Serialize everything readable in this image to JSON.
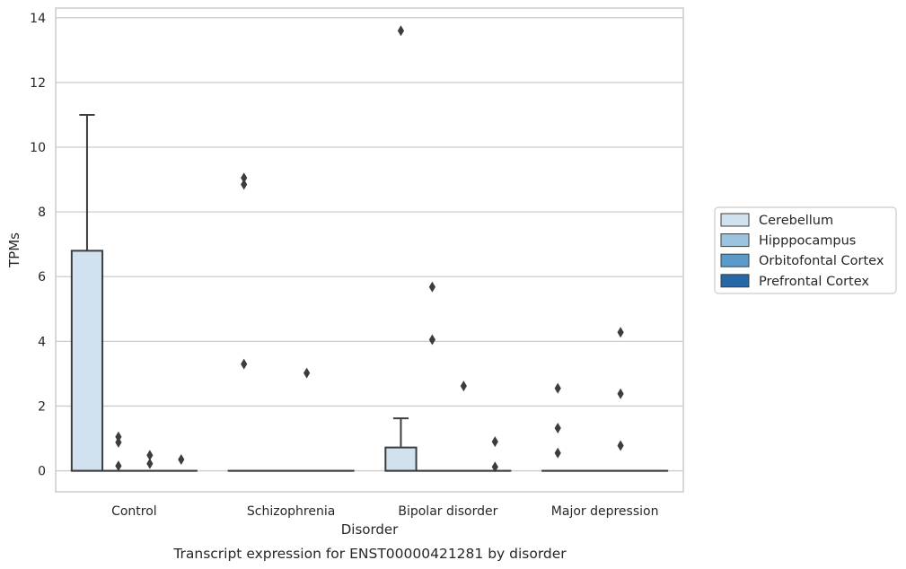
{
  "chart_data": {
    "type": "box",
    "xlabel": "Disorder",
    "ylabel": "TPMs",
    "caption": "Transcript expression for ENST00000421281 by disorder",
    "ylim": [
      -0.65,
      14.3
    ],
    "yticks": [
      0,
      2,
      4,
      6,
      8,
      10,
      12,
      14
    ],
    "grid": true,
    "legend_placement": "right",
    "categories": [
      "Control",
      "Schizophrenia",
      "Bipolar disorder",
      "Major depression"
    ],
    "series": [
      {
        "name": "Cerebellum",
        "color": "#d1e1f0",
        "boxes": [
          {
            "q1": 0,
            "median": 0,
            "q3": 6.8,
            "whisker_low": 0,
            "whisker_high": 11.0,
            "outliers": []
          },
          {
            "q1": 0,
            "median": 0,
            "q3": 0,
            "whisker_low": 0,
            "whisker_high": 0,
            "outliers": [
              3.3,
              8.85,
              9.05
            ]
          },
          {
            "q1": 0,
            "median": 0,
            "q3": 0.72,
            "whisker_low": 0,
            "whisker_high": 1.62,
            "outliers": [
              13.6
            ]
          },
          {
            "q1": 0,
            "median": 0,
            "q3": 0,
            "whisker_low": 0,
            "whisker_high": 0,
            "outliers": [
              0.55,
              1.32,
              2.55
            ]
          }
        ]
      },
      {
        "name": "Hipppocampus",
        "color": "#9ac4e0",
        "boxes": [
          {
            "q1": 0,
            "median": 0,
            "q3": 0,
            "whisker_low": 0,
            "whisker_high": 0,
            "outliers": [
              0.15,
              0.88,
              1.05
            ]
          },
          {
            "q1": 0,
            "median": 0,
            "q3": 0,
            "whisker_low": 0,
            "whisker_high": 0,
            "outliers": []
          },
          {
            "q1": 0,
            "median": 0,
            "q3": 0,
            "whisker_low": 0,
            "whisker_high": 0,
            "outliers": [
              4.05,
              5.68
            ]
          },
          {
            "q1": 0,
            "median": 0,
            "q3": 0,
            "whisker_low": 0,
            "whisker_high": 0,
            "outliers": []
          }
        ]
      },
      {
        "name": "Orbitofontal Cortex",
        "color": "#5a9bc9",
        "boxes": [
          {
            "q1": 0,
            "median": 0,
            "q3": 0,
            "whisker_low": 0,
            "whisker_high": 0,
            "outliers": [
              0.22,
              0.48
            ]
          },
          {
            "q1": 0,
            "median": 0,
            "q3": 0,
            "whisker_low": 0,
            "whisker_high": 0,
            "outliers": [
              3.02
            ]
          },
          {
            "q1": 0,
            "median": 0,
            "q3": 0,
            "whisker_low": 0,
            "whisker_high": 0,
            "outliers": [
              2.62
            ]
          },
          {
            "q1": 0,
            "median": 0,
            "q3": 0,
            "whisker_low": 0,
            "whisker_high": 0,
            "outliers": [
              0.78,
              2.38,
              4.28
            ]
          }
        ]
      },
      {
        "name": "Prefrontal Cortex",
        "color": "#2767a6",
        "boxes": [
          {
            "q1": 0,
            "median": 0,
            "q3": 0,
            "whisker_low": 0,
            "whisker_high": 0,
            "outliers": [
              0.35
            ]
          },
          {
            "q1": 0,
            "median": 0,
            "q3": 0,
            "whisker_low": 0,
            "whisker_high": 0,
            "outliers": []
          },
          {
            "q1": 0,
            "median": 0,
            "q3": 0,
            "whisker_low": 0,
            "whisker_high": 0,
            "outliers": [
              0.12,
              0.9
            ]
          },
          {
            "q1": 0,
            "median": 0,
            "q3": 0,
            "whisker_low": 0,
            "whisker_high": 0,
            "outliers": []
          }
        ]
      }
    ]
  }
}
